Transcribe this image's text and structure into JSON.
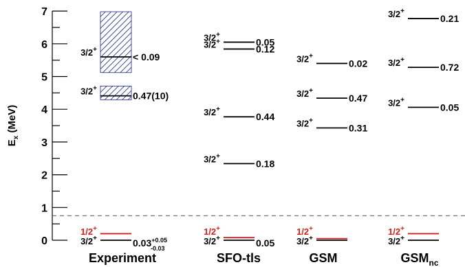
{
  "chart_data": {
    "type": "level-scheme",
    "ylabel": "E",
    "ylabel_sub": "x",
    "ylabel_unit": " (MeV)",
    "ylim": [
      0,
      7
    ],
    "yticks": [
      0,
      1,
      2,
      3,
      4,
      5,
      6,
      7
    ],
    "threshold": 0.75,
    "grid": false,
    "colors": {
      "black": "#000000",
      "red": "#d41f1f",
      "hatch": "#1a237e",
      "dashed": "#555555"
    },
    "columns": [
      {
        "name": "Experiment",
        "name_sub": "",
        "bands": [
          {
            "y0": 5.12,
            "y1": 6.98
          },
          {
            "y0": 4.29,
            "y1": 4.71
          }
        ],
        "levels": [
          {
            "energy": 5.6,
            "spin": "3/2",
            "parity": "+",
            "width": "< 0.09",
            "color": "black"
          },
          {
            "energy": 4.41,
            "spin": "3/2",
            "parity": "+",
            "width": "0.47(10)",
            "color": "black"
          },
          {
            "energy": 0.2,
            "spin": "1/2",
            "parity": "+",
            "width": "",
            "color": "red"
          },
          {
            "energy": 0.0,
            "spin": "3/2",
            "parity": "+",
            "width": "0.03",
            "width_sup": "+0.05",
            "width_sub": "-0.03",
            "color": "black"
          }
        ]
      },
      {
        "name": "SFO-tls",
        "name_sub": "",
        "bands": [],
        "levels": [
          {
            "energy": 6.05,
            "spin": "3/2",
            "parity": "+",
            "width": "0.05",
            "color": "black"
          },
          {
            "energy": 5.84,
            "spin": "3/2",
            "parity": "+",
            "width": "0.12",
            "color": "black"
          },
          {
            "energy": 3.77,
            "spin": "3/2",
            "parity": "+",
            "width": "0.44",
            "color": "black"
          },
          {
            "energy": 2.34,
            "spin": "3/2",
            "parity": "+",
            "width": "0.18",
            "color": "black"
          },
          {
            "energy": 0.08,
            "spin": "1/2",
            "parity": "+",
            "width": "",
            "color": "red"
          },
          {
            "energy": 0.0,
            "spin": "3/2",
            "parity": "+",
            "width": "0.05",
            "color": "black"
          }
        ]
      },
      {
        "name": "GSM",
        "name_sub": "",
        "bands": [],
        "levels": [
          {
            "energy": 5.4,
            "spin": "3/2",
            "parity": "+",
            "width": "0.02",
            "color": "black"
          },
          {
            "energy": 4.34,
            "spin": "3/2",
            "parity": "+",
            "width": "0.47",
            "color": "black"
          },
          {
            "energy": 3.43,
            "spin": "3/2",
            "parity": "+",
            "width": "0.31",
            "color": "black"
          },
          {
            "energy": 0.05,
            "spin": "1/2",
            "parity": "+",
            "width": "",
            "color": "red"
          },
          {
            "energy": 0.0,
            "spin": "3/2",
            "parity": "+",
            "width": "",
            "color": "black"
          }
        ]
      },
      {
        "name": "GSM",
        "name_sub": "nc",
        "bands": [],
        "levels": [
          {
            "energy": 6.77,
            "spin": "3/2",
            "parity": "+",
            "width": "0.21",
            "color": "black"
          },
          {
            "energy": 5.28,
            "spin": "3/2",
            "parity": "+",
            "width": "0.72",
            "color": "black"
          },
          {
            "energy": 4.06,
            "spin": "3/2",
            "parity": "+",
            "width": "0.05",
            "color": "black"
          },
          {
            "energy": 0.2,
            "spin": "1/2",
            "parity": "+",
            "width": "",
            "color": "red"
          },
          {
            "energy": 0.0,
            "spin": "3/2",
            "parity": "+",
            "width": "",
            "color": "black"
          }
        ]
      }
    ]
  }
}
